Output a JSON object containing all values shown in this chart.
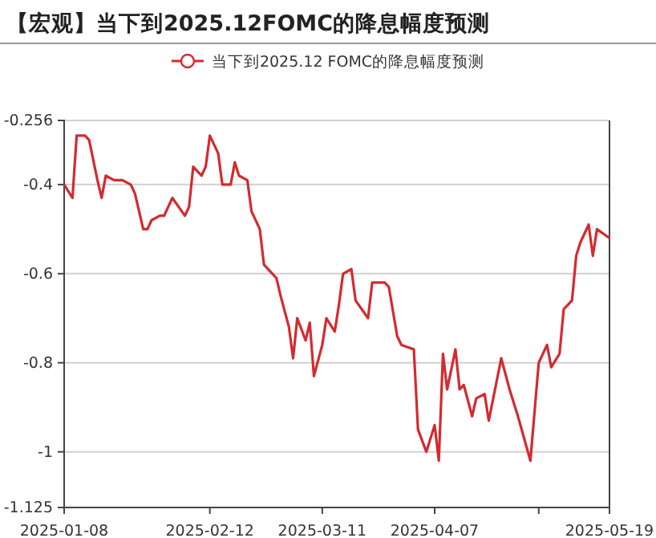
{
  "chart_data": {
    "type": "line",
    "title": "【宏观】当下到2025.12FOMC的降息幅度预测",
    "legend": "top",
    "x": [
      "2025-01-08",
      "2025-01-10",
      "2025-01-11",
      "2025-01-13",
      "2025-01-14",
      "2025-01-16",
      "2025-01-17",
      "2025-01-18",
      "2025-01-20",
      "2025-01-22",
      "2025-01-24",
      "2025-01-25",
      "2025-01-27",
      "2025-01-28",
      "2025-01-29",
      "2025-01-31",
      "2025-02-01",
      "2025-02-03",
      "2025-02-06",
      "2025-02-07",
      "2025-02-08",
      "2025-02-10",
      "2025-02-11",
      "2025-02-12",
      "2025-02-14",
      "2025-02-15",
      "2025-02-17",
      "2025-02-18",
      "2025-02-19",
      "2025-02-21",
      "2025-02-22",
      "2025-02-24",
      "2025-02-25",
      "2025-02-28",
      "2025-03-01",
      "2025-03-03",
      "2025-03-04",
      "2025-03-05",
      "2025-03-07",
      "2025-03-08",
      "2025-03-09",
      "2025-03-11",
      "2025-03-12",
      "2025-03-14",
      "2025-03-15",
      "2025-03-16",
      "2025-03-18",
      "2025-03-19",
      "2025-03-22",
      "2025-03-23",
      "2025-03-26",
      "2025-03-27",
      "2025-03-29",
      "2025-03-30",
      "2025-04-02",
      "2025-04-03",
      "2025-04-05",
      "2025-04-07",
      "2025-04-08",
      "2025-04-09",
      "2025-04-10",
      "2025-04-12",
      "2025-04-13",
      "2025-04-14",
      "2025-04-16",
      "2025-04-17",
      "2025-04-19",
      "2025-04-20",
      "2025-04-23",
      "2025-04-25",
      "2025-04-27",
      "2025-04-30",
      "2025-05-02",
      "2025-05-04",
      "2025-05-05",
      "2025-05-07",
      "2025-05-08",
      "2025-05-10",
      "2025-05-11",
      "2025-05-12",
      "2025-05-14",
      "2025-05-15",
      "2025-05-16",
      "2025-05-19"
    ],
    "series": [
      {
        "name": "当下到2025.12 FOMC的降息幅度预测",
        "color": "#d42a2f",
        "values": [
          -0.4,
          -0.43,
          -0.29,
          -0.29,
          -0.3,
          -0.39,
          -0.43,
          -0.38,
          -0.39,
          -0.39,
          -0.4,
          -0.42,
          -0.5,
          -0.5,
          -0.48,
          -0.47,
          -0.47,
          -0.43,
          -0.47,
          -0.45,
          -0.36,
          -0.38,
          -0.36,
          -0.29,
          -0.33,
          -0.4,
          -0.4,
          -0.35,
          -0.38,
          -0.39,
          -0.46,
          -0.5,
          -0.58,
          -0.61,
          -0.65,
          -0.72,
          -0.79,
          -0.7,
          -0.75,
          -0.71,
          -0.83,
          -0.76,
          -0.7,
          -0.73,
          -0.67,
          -0.6,
          -0.59,
          -0.66,
          -0.7,
          -0.62,
          -0.62,
          -0.63,
          -0.74,
          -0.76,
          -0.77,
          -0.95,
          -1.0,
          -0.94,
          -1.02,
          -0.78,
          -0.86,
          -0.77,
          -0.86,
          -0.85,
          -0.92,
          -0.88,
          -0.87,
          -0.93,
          -0.79,
          -0.86,
          -0.92,
          -1.02,
          -0.8,
          -0.76,
          -0.81,
          -0.78,
          -0.68,
          -0.66,
          -0.56,
          -0.53,
          -0.49,
          -0.56,
          -0.5,
          -0.52
        ]
      }
    ],
    "xlim": [
      "2025-01-08",
      "2025-05-19"
    ],
    "xticks": [
      {
        "value": "2025-01-08",
        "label": "2025-01-08"
      },
      {
        "value": "2025-02-12",
        "label": "2025-02-12"
      },
      {
        "value": "2025-03-11",
        "label": "2025-03-11"
      },
      {
        "value": "2025-04-07",
        "label": "2025-04-07"
      },
      {
        "value": "2025-05-02",
        "label": null
      },
      {
        "value": "2025-05-19",
        "label": "2025-05-19"
      }
    ],
    "ylim": [
      -1.125,
      -0.256
    ],
    "yticks": [
      -1.125,
      -1,
      -0.8,
      -0.6,
      -0.4,
      -0.256
    ],
    "grid": "y",
    "line_style": "solid"
  }
}
